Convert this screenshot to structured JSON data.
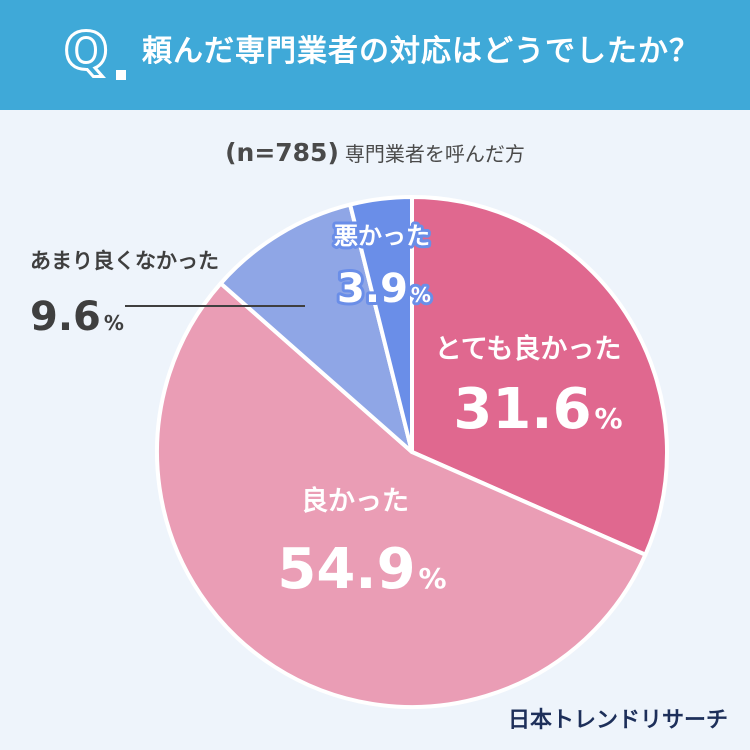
{
  "header": {
    "q_mark": "Q",
    "question": "頼んだ専門業者の対応はどうでしたか？"
  },
  "subtitle": {
    "n": "(n=785)",
    "desc": "専門業者を呼んだ方"
  },
  "brand": "日本トレンドリサーチ",
  "chart_data": {
    "type": "pie",
    "title": "頼んだ専門業者の対応はどうでしたか？",
    "start_angle": "12 o'clock",
    "direction": "clockwise",
    "slices": [
      {
        "label": "とても良かった",
        "value": 31.6,
        "display": "31.6",
        "color": "#e0688f"
      },
      {
        "label": "良かった",
        "value": 54.9,
        "display": "54.9",
        "color": "#ea9db5"
      },
      {
        "label": "あまり良くなかった",
        "value": 9.6,
        "display": "9.6",
        "color": "#8fa6e6"
      },
      {
        "label": "悪かった",
        "value": 3.9,
        "display": "3.9",
        "color": "#6a8ee8"
      }
    ],
    "unit": "%"
  }
}
